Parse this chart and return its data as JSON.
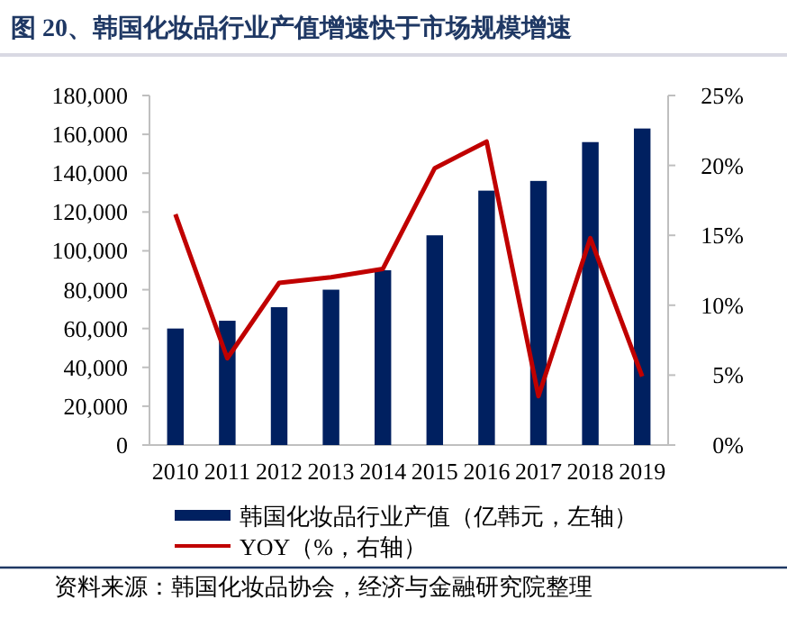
{
  "chart_data": {
    "type": "bar",
    "title": "图 20、韩国化妆品行业产值增速快于市场规模增速",
    "categories": [
      "2010",
      "2011",
      "2012",
      "2013",
      "2014",
      "2015",
      "2016",
      "2017",
      "2018",
      "2019"
    ],
    "series": [
      {
        "name": "韩国化妆品行业产值（亿韩元，左轴）",
        "color": "#002060",
        "values": [
          60000,
          64000,
          71000,
          80000,
          90000,
          108000,
          131000,
          136000,
          156000,
          163000
        ]
      },
      {
        "name": "YOY（%，右轴）",
        "type": "line",
        "axis": "y2",
        "color": "#c00000",
        "values": [
          16.5,
          6.2,
          11.6,
          12.0,
          12.6,
          19.8,
          21.7,
          3.5,
          14.8,
          4.9
        ]
      }
    ],
    "ylim": [
      0,
      180000
    ],
    "yticks": [
      {
        "value": 0,
        "label": "0"
      },
      {
        "value": 20000,
        "label": "20,000"
      },
      {
        "value": 40000,
        "label": "40,000"
      },
      {
        "value": 60000,
        "label": "60,000"
      },
      {
        "value": 80000,
        "label": "80,000"
      },
      {
        "value": 100000,
        "label": "100,000"
      },
      {
        "value": 120000,
        "label": "120,000"
      },
      {
        "value": 140000,
        "label": "140,000"
      },
      {
        "value": 160000,
        "label": "160,000"
      },
      {
        "value": 180000,
        "label": "180,000"
      }
    ],
    "y2lim": [
      0,
      25
    ],
    "y2ticks": [
      {
        "value": 0,
        "label": "0%"
      },
      {
        "value": 5,
        "label": "5%"
      },
      {
        "value": 10,
        "label": "10%"
      },
      {
        "value": 15,
        "label": "15%"
      },
      {
        "value": 20,
        "label": "20%"
      },
      {
        "value": 25,
        "label": "25%"
      }
    ],
    "legend": "bottom",
    "annotations": [
      "资料来源：韩国化妆品协会，经济与金融研究院整理"
    ]
  }
}
